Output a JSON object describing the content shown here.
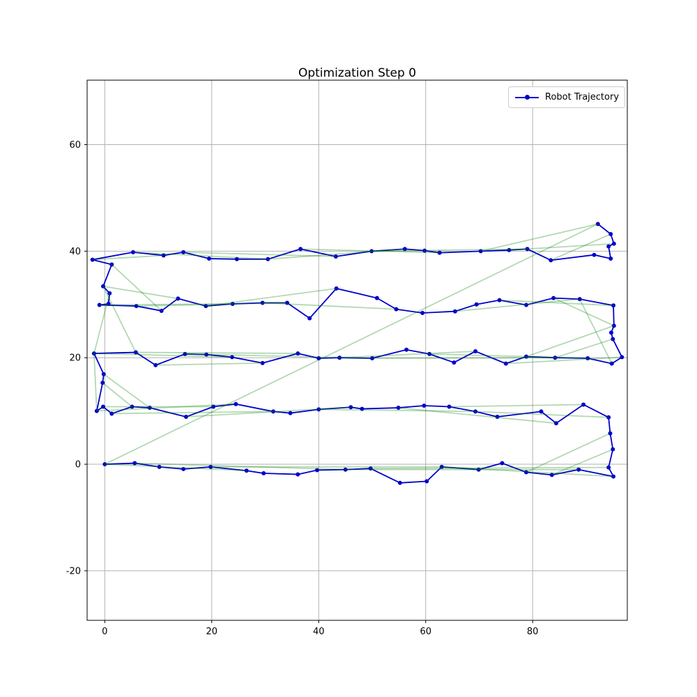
{
  "figure": {
    "title": "Optimization Step 0"
  },
  "legend": {
    "position": "upper right",
    "items": [
      {
        "label": "Robot Trajectory",
        "color": "#0000cc",
        "marker": "circle"
      }
    ]
  },
  "colors": {
    "trajectory": "#0000cc",
    "constraint_edges": "#008000",
    "grid": "#b2b2b2",
    "frame": "#000000",
    "background": "#ffffff"
  },
  "chart_data": {
    "type": "line",
    "title": "Optimization Step 0",
    "xlabel": "",
    "ylabel": "",
    "grid": true,
    "xlim": [
      -3.3,
      97.7
    ],
    "ylim": [
      -29.3,
      72.1
    ],
    "x_ticks": [
      0,
      20,
      40,
      60,
      80
    ],
    "y_ticks": [
      -20,
      0,
      20,
      40,
      60
    ],
    "legend_position": "upper right",
    "series": [
      {
        "name": "Robot Trajectory",
        "kind": "polyline_with_markers",
        "color": "#0000cc",
        "marker": "o",
        "points": [
          [
            0,
            0
          ],
          [
            5.6,
            0.2
          ],
          [
            10.2,
            -0.5
          ],
          [
            14.7,
            -0.9
          ],
          [
            19.8,
            -0.5
          ],
          [
            26.5,
            -1.2
          ],
          [
            29.7,
            -1.7
          ],
          [
            36.1,
            -1.9
          ],
          [
            39.7,
            -1.1
          ],
          [
            45,
            -1.0
          ],
          [
            49.7,
            -0.8
          ],
          [
            55.2,
            -3.5
          ],
          [
            60.2,
            -3.2
          ],
          [
            63,
            -0.5
          ],
          [
            69.9,
            -1.0
          ],
          [
            74.3,
            0.2
          ],
          [
            78.8,
            -1.5
          ],
          [
            83.6,
            -2.0
          ],
          [
            88.6,
            -1.0
          ],
          [
            95.1,
            -2.3
          ],
          [
            94.2,
            -0.6
          ],
          [
            95,
            2.8
          ],
          [
            94.5,
            5.8
          ],
          [
            94.2,
            8.8
          ],
          [
            89.5,
            11.2
          ],
          [
            84.4,
            7.7
          ],
          [
            81.6,
            9.9
          ],
          [
            73.4,
            8.9
          ],
          [
            69.3,
            9.9
          ],
          [
            64.4,
            10.8
          ],
          [
            59.7,
            11
          ],
          [
            54.9,
            10.6
          ],
          [
            48.1,
            10.4
          ],
          [
            46,
            10.7
          ],
          [
            40,
            10.3
          ],
          [
            34.7,
            9.6
          ],
          [
            31.5,
            9.9
          ],
          [
            24.5,
            11.3
          ],
          [
            20.3,
            10.8
          ],
          [
            15.2,
            8.9
          ],
          [
            8.4,
            10.6
          ],
          [
            5.1,
            10.8
          ],
          [
            1.3,
            9.5
          ],
          [
            -0.3,
            10.8
          ],
          [
            -1.5,
            10
          ],
          [
            -0.4,
            15.3
          ],
          [
            -0.2,
            16.9
          ],
          [
            -2,
            20.8
          ],
          [
            5.8,
            21
          ],
          [
            9.5,
            18.6
          ],
          [
            15,
            20.7
          ],
          [
            19,
            20.6
          ],
          [
            23.8,
            20.1
          ],
          [
            29.5,
            19
          ],
          [
            36.1,
            20.8
          ],
          [
            40,
            19.9
          ],
          [
            43.9,
            20
          ],
          [
            50,
            19.9
          ],
          [
            56.4,
            21.5
          ],
          [
            60.7,
            20.7
          ],
          [
            65.3,
            19.1
          ],
          [
            69.3,
            21.2
          ],
          [
            75,
            18.9
          ],
          [
            78.8,
            20.2
          ],
          [
            84.2,
            20
          ],
          [
            90.3,
            19.9
          ],
          [
            94.8,
            18.9
          ],
          [
            96.7,
            20.1
          ],
          [
            95,
            23.5
          ],
          [
            94.7,
            24.7
          ],
          [
            95.2,
            26
          ],
          [
            95.1,
            29.8
          ],
          [
            88.8,
            31
          ],
          [
            83.9,
            31.2
          ],
          [
            78.8,
            29.9
          ],
          [
            73.8,
            30.8
          ],
          [
            69.5,
            30
          ],
          [
            65.5,
            28.7
          ],
          [
            59.4,
            28.4
          ],
          [
            54.5,
            29.1
          ],
          [
            50.9,
            31.2
          ],
          [
            43.3,
            33
          ],
          [
            38.3,
            27.4
          ],
          [
            34.1,
            30.3
          ],
          [
            29.5,
            30.3
          ],
          [
            23.9,
            30.1
          ],
          [
            18.9,
            29.7
          ],
          [
            13.7,
            31.1
          ],
          [
            10.6,
            28.8
          ],
          [
            5.9,
            29.7
          ],
          [
            -1,
            29.9
          ],
          [
            0.7,
            30.1
          ],
          [
            0.9,
            32.1
          ],
          [
            -0.3,
            33.4
          ],
          [
            1.3,
            37.5
          ],
          [
            -2.3,
            38.4
          ],
          [
            5.3,
            39.8
          ],
          [
            11,
            39.2
          ],
          [
            14.7,
            39.8
          ],
          [
            19.5,
            38.6
          ],
          [
            24.7,
            38.5
          ],
          [
            30.5,
            38.5
          ],
          [
            36.6,
            40.4
          ],
          [
            43.2,
            39
          ],
          [
            49.9,
            40
          ],
          [
            56.1,
            40.4
          ],
          [
            59.8,
            40.1
          ],
          [
            62.6,
            39.7
          ],
          [
            70.3,
            40
          ],
          [
            75.6,
            40.2
          ],
          [
            79,
            40.4
          ],
          [
            83.4,
            38.3
          ],
          [
            91.5,
            39.3
          ],
          [
            94.6,
            38.6
          ],
          [
            94.2,
            40.9
          ],
          [
            95.2,
            41.4
          ],
          [
            94.6,
            43.2
          ],
          [
            92.2,
            45.1
          ]
        ]
      },
      {
        "name": "constraint-edges",
        "kind": "segments",
        "color": "#008000",
        "opacity": 0.3,
        "segments": [
          [
            [
              0,
              0
            ],
            [
              92.2,
              45.1
            ]
          ],
          [
            [
              0,
              0
            ],
            [
              26.5,
              -1.2
            ]
          ],
          [
            [
              5.6,
              0.2
            ],
            [
              45,
              -1
            ]
          ],
          [
            [
              19.8,
              -0.5
            ],
            [
              63,
              -0.5
            ]
          ],
          [
            [
              45,
              -1
            ],
            [
              88.6,
              -1
            ]
          ],
          [
            [
              49.7,
              -0.8
            ],
            [
              94.2,
              -0.6
            ]
          ],
          [
            [
              63,
              -0.5
            ],
            [
              95.1,
              -2.3
            ]
          ],
          [
            [
              94.5,
              5.8
            ],
            [
              78.8,
              -1.5
            ]
          ],
          [
            [
              95,
              2.8
            ],
            [
              83.6,
              -2
            ]
          ],
          [
            [
              -0.3,
              10.8
            ],
            [
              20.3,
              10.8
            ]
          ],
          [
            [
              1.3,
              9.5
            ],
            [
              31.5,
              9.9
            ]
          ],
          [
            [
              15.2,
              8.9
            ],
            [
              46,
              10.7
            ]
          ],
          [
            [
              -1.5,
              10
            ],
            [
              24.5,
              11.3
            ]
          ],
          [
            [
              40,
              10.3
            ],
            [
              69.3,
              9.9
            ]
          ],
          [
            [
              54.9,
              10.6
            ],
            [
              84.4,
              7.7
            ]
          ],
          [
            [
              89.5,
              11.2
            ],
            [
              64.4,
              10.8
            ]
          ],
          [
            [
              94.2,
              8.8
            ],
            [
              69.3,
              9.9
            ]
          ],
          [
            [
              -0.2,
              16.9
            ],
            [
              8.4,
              10.6
            ]
          ],
          [
            [
              -0.4,
              15.3
            ],
            [
              5.1,
              10.8
            ]
          ],
          [
            [
              -2,
              20.8
            ],
            [
              -1.5,
              10
            ]
          ],
          [
            [
              -2,
              20.8
            ],
            [
              23.8,
              20.1
            ]
          ],
          [
            [
              5.8,
              21
            ],
            [
              36.1,
              20.8
            ]
          ],
          [
            [
              15,
              20.7
            ],
            [
              50,
              19.9
            ]
          ],
          [
            [
              9.5,
              18.6
            ],
            [
              29.5,
              19
            ]
          ],
          [
            [
              43.9,
              20
            ],
            [
              69.3,
              21.2
            ]
          ],
          [
            [
              50,
              19.9
            ],
            [
              84.2,
              20
            ]
          ],
          [
            [
              60.7,
              20.7
            ],
            [
              90.3,
              19.9
            ]
          ],
          [
            [
              96.7,
              20.1
            ],
            [
              75,
              18.9
            ]
          ],
          [
            [
              95,
              23.5
            ],
            [
              84.2,
              20
            ]
          ],
          [
            [
              95.2,
              26
            ],
            [
              78.8,
              20.2
            ]
          ],
          [
            [
              0.9,
              32.1
            ],
            [
              -2,
              20.8
            ]
          ],
          [
            [
              -0.3,
              33.4
            ],
            [
              5.8,
              21
            ]
          ],
          [
            [
              -1,
              29.9
            ],
            [
              23.9,
              30.1
            ]
          ],
          [
            [
              5.9,
              29.7
            ],
            [
              34.1,
              30.3
            ]
          ],
          [
            [
              18.9,
              29.7
            ],
            [
              43.3,
              33
            ]
          ],
          [
            [
              29.5,
              30.3
            ],
            [
              54.5,
              29.1
            ]
          ],
          [
            [
              95.1,
              29.8
            ],
            [
              73.8,
              30.8
            ]
          ],
          [
            [
              88.8,
              31
            ],
            [
              65.5,
              28.7
            ]
          ],
          [
            [
              95.2,
              26
            ],
            [
              83.9,
              31.2
            ]
          ],
          [
            [
              94.8,
              18.9
            ],
            [
              88.8,
              31
            ]
          ],
          [
            [
              1.3,
              37.5
            ],
            [
              10.6,
              28.8
            ]
          ],
          [
            [
              -0.3,
              33.4
            ],
            [
              13.7,
              31.1
            ]
          ],
          [
            [
              -2.3,
              38.4
            ],
            [
              11,
              39.2
            ]
          ],
          [
            [
              5.3,
              39.8
            ],
            [
              30.5,
              38.5
            ]
          ],
          [
            [
              14.7,
              39.8
            ],
            [
              43.2,
              39
            ]
          ],
          [
            [
              30.5,
              38.5
            ],
            [
              56.1,
              40.4
            ]
          ],
          [
            [
              36.6,
              40.4
            ],
            [
              62.6,
              39.7
            ]
          ],
          [
            [
              49.9,
              40
            ],
            [
              79,
              40.4
            ]
          ],
          [
            [
              92.2,
              45.1
            ],
            [
              70.3,
              40
            ]
          ],
          [
            [
              94.6,
              43.2
            ],
            [
              83.4,
              38.3
            ]
          ],
          [
            [
              95.2,
              41.4
            ],
            [
              75.6,
              40.2
            ]
          ]
        ]
      }
    ]
  }
}
